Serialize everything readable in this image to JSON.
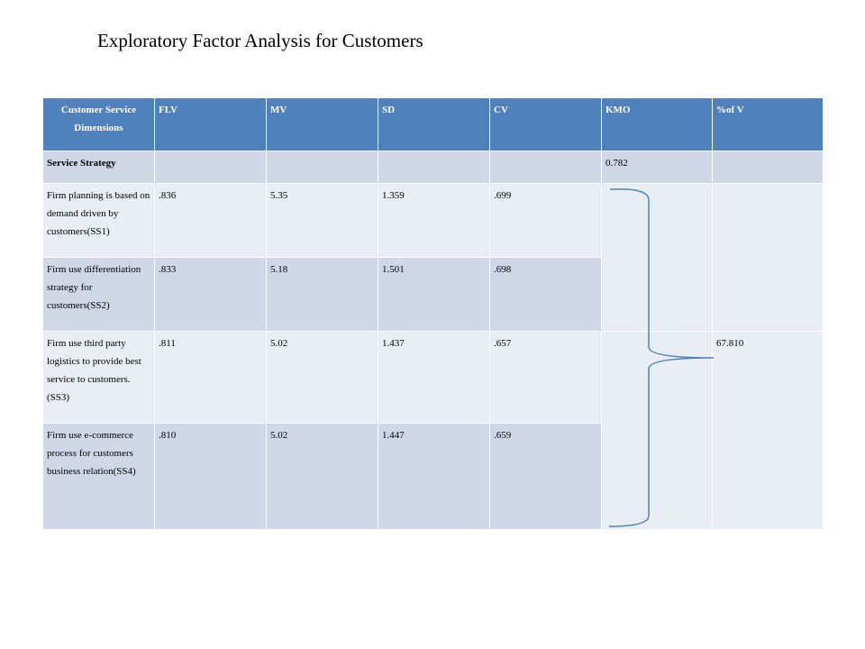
{
  "title": "Exploratory Factor Analysis for Customers",
  "table": {
    "headers": [
      "Customer Service Dimensions",
      "FLV",
      "MV",
      "SD",
      "CV",
      "KMO",
      "%of V"
    ],
    "section": {
      "label": "Service Strategy",
      "kmo": "0.782"
    },
    "rows": [
      {
        "item": "Firm planning is based on demand driven by customers(SS1)",
        "flv": ".836",
        "mv": "5.35",
        "sd": "1.359",
        "cv": ".699"
      },
      {
        "item": "Firm use differentiation strategy for customers(SS2)",
        "flv": ".833",
        "mv": "5.18",
        "sd": "1.501",
        "cv": ".698"
      },
      {
        "item": "Firm use third party logistics to provide best service to customers.(SS3)",
        "flv": ".811",
        "mv": "5.02",
        "sd": "1.437",
        "cv": ".657"
      },
      {
        "item": "Firm use e-commerce process for customers business relation(SS4)",
        "flv": ".810",
        "mv": "5.02",
        "sd": "1.447",
        "cv": ".659"
      }
    ],
    "variance_explained": "67.810"
  },
  "colors": {
    "header": "#4f81bd",
    "row_dark": "#d0d8e8",
    "row_light": "#e9edf4",
    "brace": "#4f81bd"
  }
}
